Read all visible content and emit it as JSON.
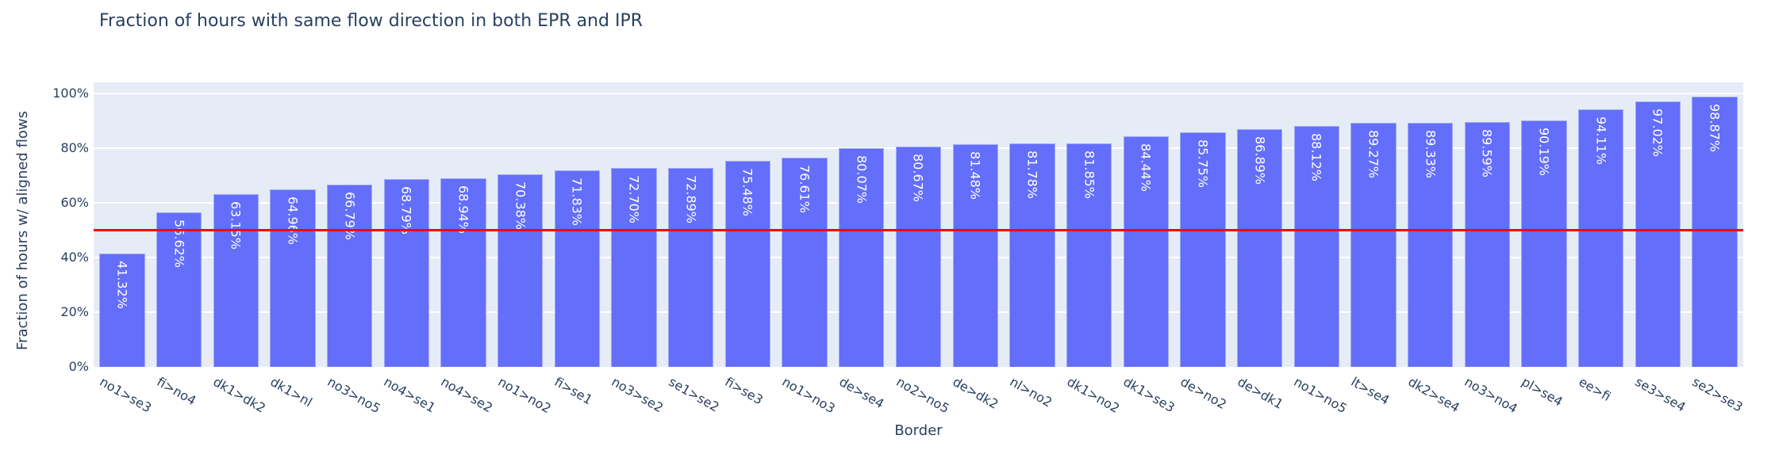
{
  "chart": {
    "title": "Fraction of hours with same flow direction in both EPR and IPR",
    "xlabel": "Border",
    "ylabel": "Fraction of hours w/ aligned flows",
    "yticks": [
      "0%",
      "20%",
      "40%",
      "60%",
      "80%",
      "100%"
    ],
    "colors": {
      "bar": "#636efa",
      "plot_bg": "#e5ecf6",
      "grid": "#ffffff",
      "reference_line": "#ff0000",
      "text": "#2a3f5f"
    }
  },
  "chart_data": {
    "type": "bar",
    "title": "Fraction of hours with same flow direction in both EPR and IPR",
    "xlabel": "Border",
    "ylabel": "Fraction of hours w/ aligned flows",
    "ylim": [
      0,
      1.03
    ],
    "ytick_values": [
      0,
      0.2,
      0.4,
      0.6,
      0.8,
      1.0
    ],
    "ytick_labels": [
      "0%",
      "20%",
      "40%",
      "60%",
      "80%",
      "100%"
    ],
    "grid": true,
    "legend": null,
    "reference_line": {
      "orientation": "horizontal",
      "y": 0.5,
      "color": "#ff0000"
    },
    "categories": [
      "no1>se3",
      "fi>no4",
      "dk1>dk2",
      "dk1>nl",
      "no3>no5",
      "no4>se1",
      "no4>se2",
      "no1>no2",
      "fi>se1",
      "no3>se2",
      "se1>se2",
      "fi>se3",
      "no1>no3",
      "de>se4",
      "no2>no5",
      "de>dk2",
      "nl>no2",
      "dk1>no2",
      "dk1>se3",
      "de>no2",
      "de>dk1",
      "no1>no5",
      "lt>se4",
      "dk2>se4",
      "no3>no4",
      "pl>se4",
      "ee>fi",
      "se3>se4",
      "se2>se3"
    ],
    "values": [
      0.4132,
      0.5662,
      0.6315,
      0.6496,
      0.6679,
      0.6879,
      0.6894,
      0.7038,
      0.7183,
      0.727,
      0.7289,
      0.7548,
      0.7661,
      0.8007,
      0.8067,
      0.8148,
      0.8178,
      0.8185,
      0.8444,
      0.8575,
      0.8689,
      0.8812,
      0.8927,
      0.8933,
      0.8959,
      0.9019,
      0.9411,
      0.9702,
      0.9887
    ],
    "value_labels": [
      "41.32%",
      "56.62%",
      "63.15%",
      "64.96%",
      "66.79%",
      "68.79%",
      "68.94%",
      "70.38%",
      "71.83%",
      "72.70%",
      "72.89%",
      "75.48%",
      "76.61%",
      "80.07%",
      "80.67%",
      "81.48%",
      "81.78%",
      "81.85%",
      "84.44%",
      "85.75%",
      "86.89%",
      "88.12%",
      "89.27%",
      "89.33%",
      "89.59%",
      "90.19%",
      "94.11%",
      "97.02%",
      "98.87%"
    ]
  }
}
